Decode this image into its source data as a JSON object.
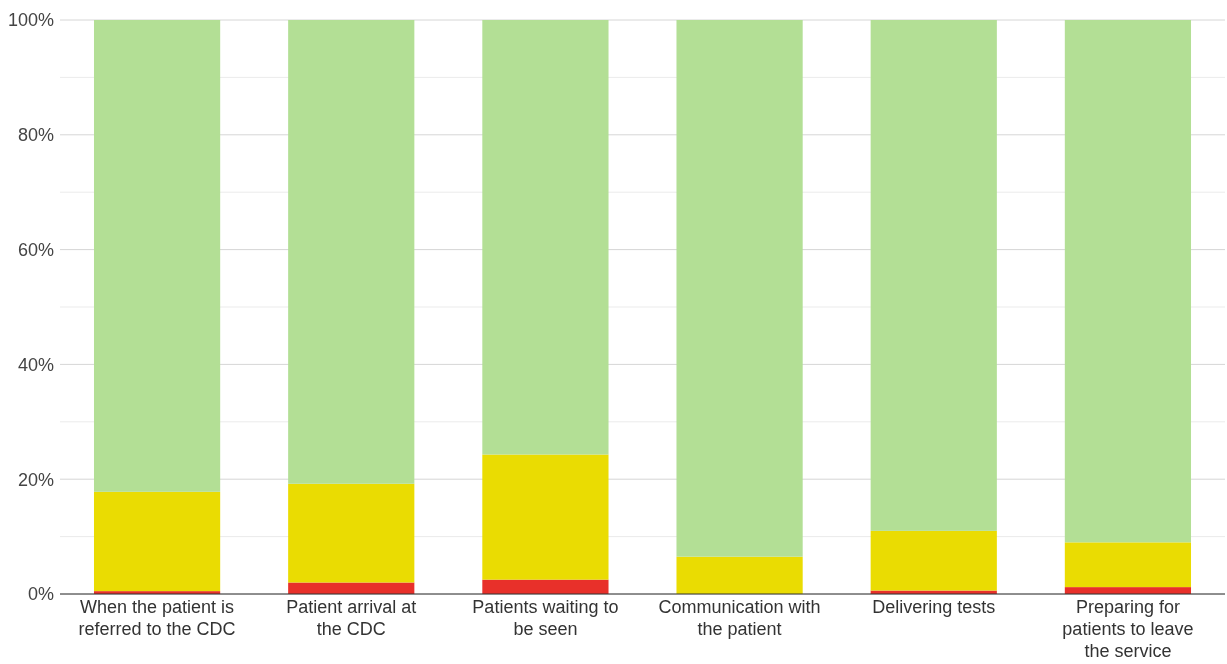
{
  "chart_data": {
    "type": "bar",
    "stacked": true,
    "categories": [
      "When the patient is referred to the CDC",
      "Patient arrival at the CDC",
      "Patients waiting to be seen",
      "Communication with the patient",
      "Delivering tests",
      "Preparing for patients to leave the service"
    ],
    "series": [
      {
        "color": "#e8302a",
        "values": [
          0.5,
          2,
          2.5,
          0,
          0.6,
          1.2
        ]
      },
      {
        "color": "#eadc02",
        "values": [
          17.3,
          17.2,
          21.8,
          6.5,
          10.4,
          7.8
        ]
      },
      {
        "color": "#b3df95",
        "values": [
          82.2,
          80.8,
          75.7,
          93.5,
          89,
          91
        ]
      }
    ],
    "ylim": [
      0,
      100
    ],
    "yticks": [
      {
        "value": 0,
        "label": "0%"
      },
      {
        "value": 10,
        "label": null
      },
      {
        "value": 20,
        "label": "20%"
      },
      {
        "value": 30,
        "label": null
      },
      {
        "value": 40,
        "label": "40%"
      },
      {
        "value": 50,
        "label": null
      },
      {
        "value": 60,
        "label": "60%"
      },
      {
        "value": 70,
        "label": null
      },
      {
        "value": 80,
        "label": "80%"
      },
      {
        "value": 90,
        "label": null
      },
      {
        "value": 100,
        "label": "100%"
      }
    ],
    "grid": "y"
  }
}
